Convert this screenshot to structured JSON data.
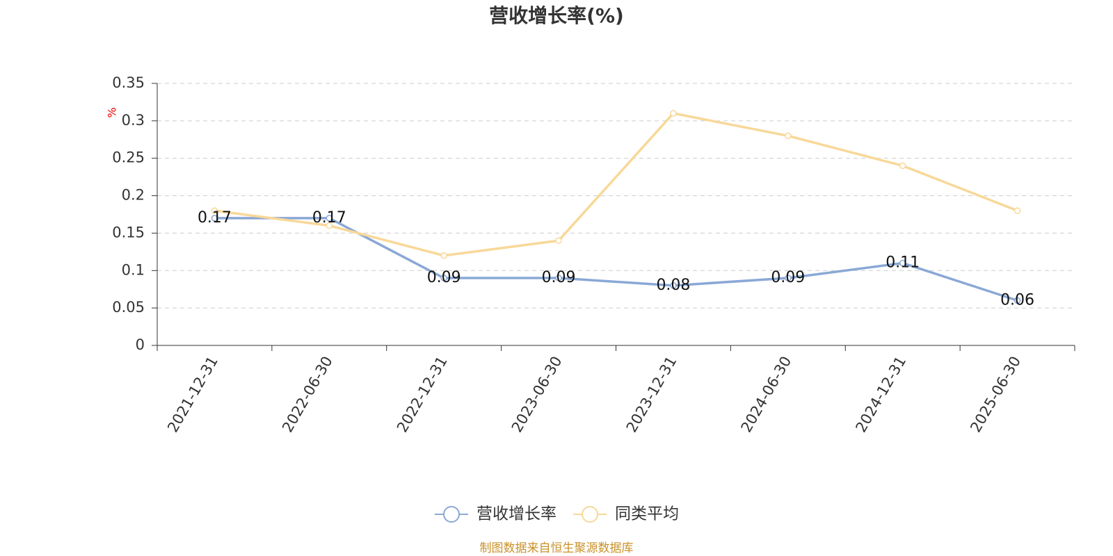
{
  "chart_data": {
    "type": "line",
    "title": "营收增长率(%)",
    "y_axis_label": "%",
    "categories": [
      "2021-12-31",
      "2022-06-30",
      "2022-12-31",
      "2023-06-30",
      "2023-12-31",
      "2024-06-30",
      "2024-12-31",
      "2025-06-30"
    ],
    "series": [
      {
        "name": "营收增长率",
        "color": "#8aa8d6",
        "values": [
          0.17,
          0.17,
          0.09,
          0.09,
          0.08,
          0.09,
          0.11,
          0.06
        ],
        "data_labels": true
      },
      {
        "name": "同类平均",
        "color": "#f8d898",
        "values": [
          0.18,
          0.16,
          0.12,
          0.14,
          0.31,
          0.28,
          0.24,
          0.18
        ],
        "data_labels": false
      }
    ],
    "ylim": [
      0,
      0.35
    ],
    "yticks": [
      0,
      0.05,
      0.1,
      0.15,
      0.2,
      0.25,
      0.3,
      0.35
    ],
    "grid": true,
    "legend": "bottom",
    "source": "制图数据来自恒生聚源数据库"
  }
}
